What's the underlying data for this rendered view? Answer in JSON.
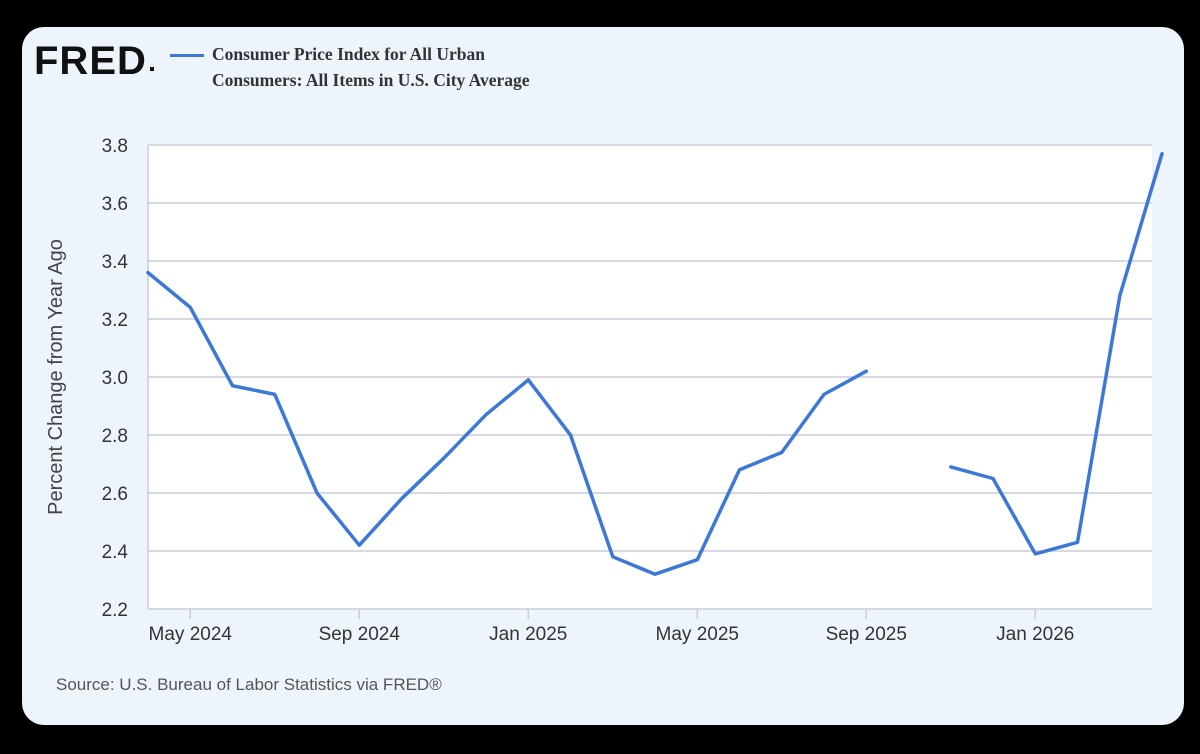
{
  "logo": {
    "text": "FRED"
  },
  "source": "Source: U.S. Bureau of Labor Statistics via FRED®",
  "colors": {
    "line": "#3b78d8",
    "grid": "#c9ced6",
    "background": "#eef4fb"
  },
  "chart_data": {
    "type": "line",
    "title": "",
    "xlabel": "",
    "ylabel": "Percent Change from Year Ago",
    "ylim": [
      2.2,
      3.8
    ],
    "xlim": [
      "2024-04",
      "2026-03"
    ],
    "yticks": [
      "2.2",
      "2.4",
      "2.6",
      "2.8",
      "3.0",
      "3.2",
      "3.4",
      "3.6",
      "3.8"
    ],
    "xticks": [
      {
        "date": "2024-05",
        "label": "May 2024"
      },
      {
        "date": "2024-09",
        "label": "Sep 2024"
      },
      {
        "date": "2025-01",
        "label": "Jan 2025"
      },
      {
        "date": "2025-05",
        "label": "May 2025"
      },
      {
        "date": "2025-09",
        "label": "Sep 2025"
      },
      {
        "date": "2026-01",
        "label": "Jan 2026"
      }
    ],
    "grid": true,
    "legend": "top",
    "series": [
      {
        "name": "Consumer Price Index for All Urban Consumers: All Items in U.S. City Average",
        "points": [
          {
            "x": "2024-04",
            "y": 3.36
          },
          {
            "x": "2024-05",
            "y": 3.24
          },
          {
            "x": "2024-06",
            "y": 2.97
          },
          {
            "x": "2024-07",
            "y": 2.94
          },
          {
            "x": "2024-08",
            "y": 2.6
          },
          {
            "x": "2024-09",
            "y": 2.42
          },
          {
            "x": "2024-10",
            "y": 2.58
          },
          {
            "x": "2024-11",
            "y": 2.72
          },
          {
            "x": "2024-12",
            "y": 2.87
          },
          {
            "x": "2025-01",
            "y": 2.99
          },
          {
            "x": "2025-02",
            "y": 2.8
          },
          {
            "x": "2025-03",
            "y": 2.38
          },
          {
            "x": "2025-04",
            "y": 2.32
          },
          {
            "x": "2025-05",
            "y": 2.37
          },
          {
            "x": "2025-06",
            "y": 2.68
          },
          {
            "x": "2025-07",
            "y": 2.74
          },
          {
            "x": "2025-08",
            "y": 2.94
          },
          {
            "x": "2025-09",
            "y": 3.02
          },
          {
            "x": "2025-10",
            "y": null
          },
          {
            "x": "2025-11",
            "y": 2.69
          },
          {
            "x": "2025-12",
            "y": 2.65
          },
          {
            "x": "2026-01",
            "y": 2.39
          },
          {
            "x": "2026-02",
            "y": 2.43
          },
          {
            "x": "2026-03",
            "y": 3.28
          },
          {
            "x": "2026-04",
            "y": 3.77
          }
        ]
      }
    ]
  }
}
